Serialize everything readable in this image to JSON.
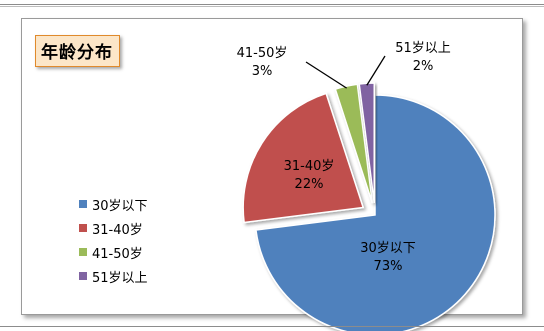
{
  "chart_data": {
    "type": "pie",
    "title": "年龄分布",
    "slices": [
      {
        "name": "30岁以下",
        "value": 73,
        "percent_label": "73%",
        "color": "#4f81bd"
      },
      {
        "name": "31-40岁",
        "value": 22,
        "percent_label": "22%",
        "color": "#c0504d"
      },
      {
        "name": "41-50岁",
        "value": 3,
        "percent_label": "3%",
        "color": "#9bbb59"
      },
      {
        "name": "51岁以上",
        "value": 2,
        "percent_label": "2%",
        "color": "#8064a2"
      }
    ],
    "legend": {
      "position": "left",
      "items": [
        "30岁以下",
        "31-40岁",
        "41-50岁",
        "51岁以上"
      ]
    },
    "exploded": true,
    "start_angle_deg": 0
  }
}
